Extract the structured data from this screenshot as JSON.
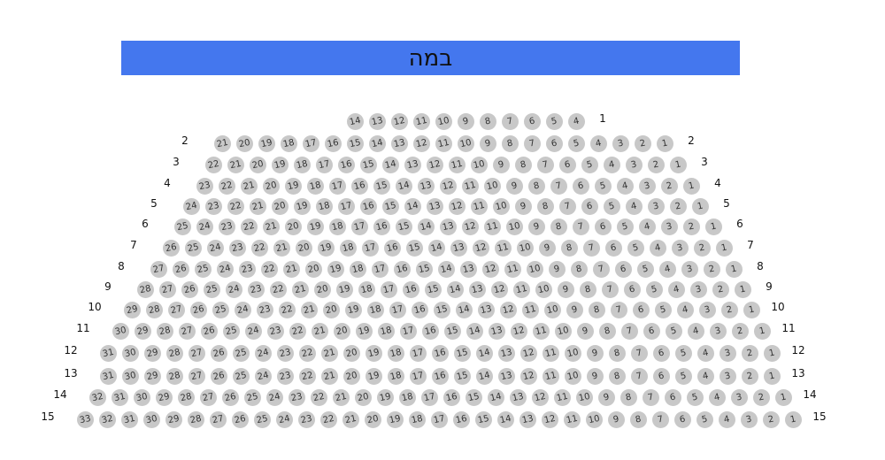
{
  "stage": {
    "label": "במה",
    "color": "#4477ee"
  },
  "seat_color": "#c8c8c8",
  "rows": [
    {
      "label": "1",
      "from": 14,
      "to": 4,
      "show_left_label": false
    },
    {
      "label": "2",
      "from": 21,
      "to": 1,
      "show_left_label": true
    },
    {
      "label": "3",
      "from": 22,
      "to": 1,
      "show_left_label": true
    },
    {
      "label": "4",
      "from": 23,
      "to": 1,
      "show_left_label": true
    },
    {
      "label": "5",
      "from": 24,
      "to": 1,
      "show_left_label": true
    },
    {
      "label": "6",
      "from": 25,
      "to": 1,
      "show_left_label": true
    },
    {
      "label": "7",
      "from": 26,
      "to": 1,
      "show_left_label": true
    },
    {
      "label": "8",
      "from": 27,
      "to": 1,
      "show_left_label": true
    },
    {
      "label": "9",
      "from": 28,
      "to": 1,
      "show_left_label": true
    },
    {
      "label": "10",
      "from": 29,
      "to": 1,
      "show_left_label": true
    },
    {
      "label": "11",
      "from": 30,
      "to": 1,
      "show_left_label": true
    },
    {
      "label": "12",
      "from": 31,
      "to": 1,
      "show_left_label": true
    },
    {
      "label": "13",
      "from": 31,
      "to": 1,
      "show_left_label": true
    },
    {
      "label": "14",
      "from": 32,
      "to": 1,
      "show_left_label": true
    },
    {
      "label": "15",
      "from": 33,
      "to": 1,
      "show_left_label": true
    }
  ]
}
